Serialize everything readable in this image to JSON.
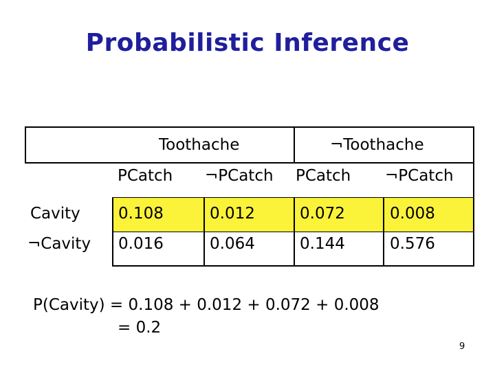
{
  "slide": {
    "title": "Probabilistic Inference",
    "page_number": "9",
    "highlight_color": "#fbf23a",
    "title_color": "#1f1f9c"
  },
  "table": {
    "group_headers": [
      "Toothache",
      "¬Toothache"
    ],
    "sub_headers": [
      "PCatch",
      "¬PCatch",
      "PCatch",
      "¬PCatch"
    ],
    "rows": [
      {
        "label": "Cavity",
        "values": [
          "0.108",
          "0.012",
          "0.072",
          "0.008"
        ]
      },
      {
        "label": "¬Cavity",
        "values": [
          "0.016",
          "0.064",
          "0.144",
          "0.576"
        ]
      }
    ]
  },
  "formula": {
    "line1": "P(Cavity) = 0.108 + 0.012 + 0.072 + 0.008",
    "line2": "= 0.2"
  }
}
